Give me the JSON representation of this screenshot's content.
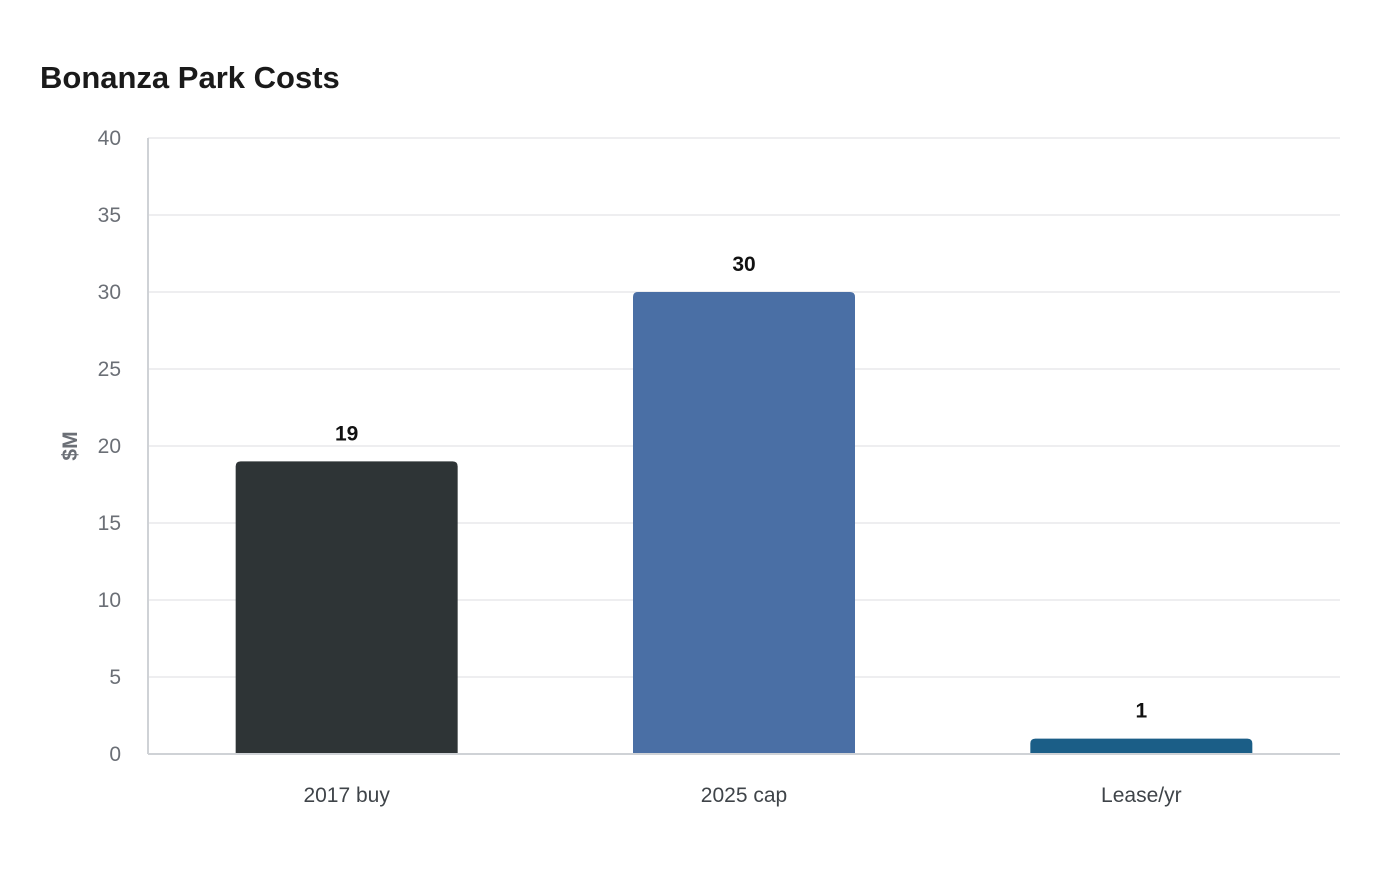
{
  "chart_data": {
    "type": "bar",
    "title": "Bonanza Park Costs",
    "xlabel": "",
    "ylabel": "$M",
    "categories": [
      "2017 buy",
      "2025 cap",
      "Lease/yr"
    ],
    "values": [
      19,
      30,
      1
    ],
    "value_labels": [
      "19",
      "30",
      "1"
    ],
    "colors": [
      "#2e3436",
      "#4a6fa5",
      "#1b5e87"
    ],
    "ylim": [
      0,
      40
    ],
    "yticks": [
      0,
      5,
      10,
      15,
      20,
      25,
      30,
      35,
      40
    ],
    "grid": true
  }
}
